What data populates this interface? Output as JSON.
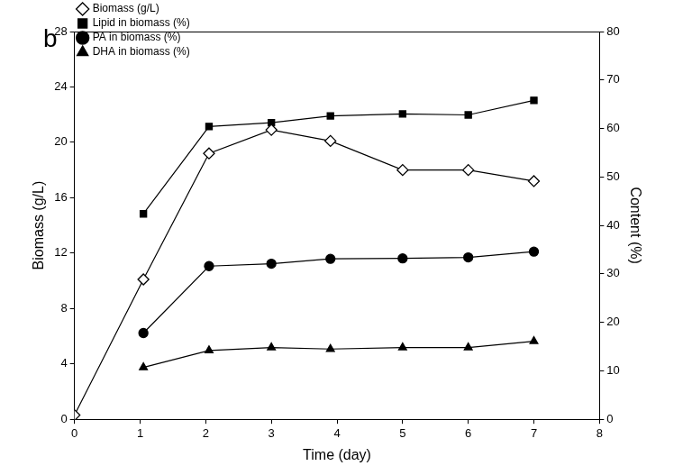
{
  "chart_data": {
    "type": "line",
    "title": "b",
    "x_label": "Time (day)",
    "y_label": "Biomass (g/L)",
    "y2_label": "Content (%)",
    "x": [
      0,
      1.05,
      2.05,
      3,
      3.9,
      5,
      6,
      7
    ],
    "xlim": [
      0,
      8
    ],
    "xticks": [
      0,
      1,
      2,
      3,
      4,
      5,
      6,
      7,
      8
    ],
    "ylim": [
      0,
      28
    ],
    "yticks": [
      0,
      4,
      8,
      12,
      16,
      20,
      24,
      28
    ],
    "y2lim": [
      0,
      80
    ],
    "y2ticks": [
      0,
      10,
      20,
      30,
      40,
      50,
      60,
      70,
      80
    ],
    "grid": false,
    "legend": "upper left",
    "series": [
      {
        "name": "Biomass (g/L)",
        "color": "#000000",
        "marker": "open_diamond",
        "line_style": "solid",
        "values": [
          0.3,
          10.1,
          19.2,
          20.9,
          20.1,
          18.0,
          18.0,
          17.2
        ]
      },
      {
        "name": "Lipid in biomass (%)",
        "color": "#000000",
        "marker": "square",
        "line_style": "solid",
        "axis": "y2",
        "values": [
          null,
          42.4,
          60.4,
          61.2,
          62.6,
          63.0,
          62.8,
          65.8
        ]
      },
      {
        "name": "PA in biomass (%)",
        "color": "#000000",
        "marker": "circle",
        "line_style": "solid",
        "axis": "y2",
        "values": [
          null,
          17.8,
          31.6,
          32.1,
          33.1,
          33.2,
          33.4,
          34.6
        ]
      },
      {
        "name": "DHA in biomass (%)",
        "color": "#000000",
        "marker": "triangle",
        "line_style": "solid",
        "axis": "y2",
        "values": [
          null,
          10.7,
          14.2,
          14.8,
          14.5,
          14.8,
          14.8,
          16.1
        ]
      }
    ]
  }
}
